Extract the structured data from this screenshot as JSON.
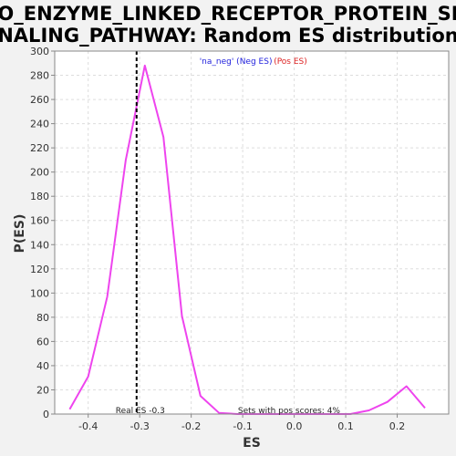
{
  "chart_data": {
    "type": "line",
    "title_line1": "GO_ENZYME_LINKED_RECEPTOR_PROTEIN_SIG",
    "title_line2": "NALING_PATHWAY: Random ES distribution",
    "xlabel": "ES",
    "ylabel": "P(ES)",
    "xlim": [
      -0.465,
      0.3
    ],
    "ylim": [
      0,
      300
    ],
    "xticks": [
      -0.4,
      -0.3,
      -0.2,
      -0.1,
      0.0,
      0.1,
      0.2
    ],
    "xtick_labels": [
      "-0.4",
      "-0.3",
      "-0.2",
      "-0.1",
      "0.0",
      "0.1",
      "0.2"
    ],
    "yticks": [
      0,
      20,
      40,
      60,
      80,
      100,
      120,
      140,
      160,
      180,
      200,
      220,
      240,
      260,
      280,
      300
    ],
    "ytick_labels": [
      "0",
      "20",
      "40",
      "60",
      "80",
      "100",
      "120",
      "140",
      "160",
      "180",
      "200",
      "220",
      "240",
      "260",
      "280",
      "300"
    ],
    "grid": true,
    "series": [
      {
        "color": "#ee44ee",
        "x": [
          -0.436,
          -0.4,
          -0.363,
          -0.327,
          -0.29,
          -0.254,
          -0.218,
          -0.182,
          -0.146,
          -0.11,
          -0.073,
          -0.037,
          0.0,
          0.036,
          0.073,
          0.109,
          0.145,
          0.181,
          0.218,
          0.254
        ],
        "y": [
          4,
          31,
          97,
          210,
          288,
          229,
          81,
          15,
          1,
          0,
          0,
          0,
          0,
          0,
          0,
          0,
          3,
          10,
          23,
          5
        ]
      }
    ],
    "real_es": {
      "x": -0.306,
      "label": "Real ES -0.3",
      "color": "#000000"
    },
    "pos_scores_label": "Sets with pos scores: 4%",
    "legend": {
      "position": "top-center",
      "items": [
        {
          "text": "'na_neg' (Neg ES)",
          "color": "#2222dd"
        },
        {
          "text": "(Pos ES)",
          "color": "#dd2222"
        }
      ]
    },
    "colors": {
      "plot_bg": "#ffffff",
      "page_bg": "#f2f2f2",
      "grid": "#dddddd"
    }
  }
}
